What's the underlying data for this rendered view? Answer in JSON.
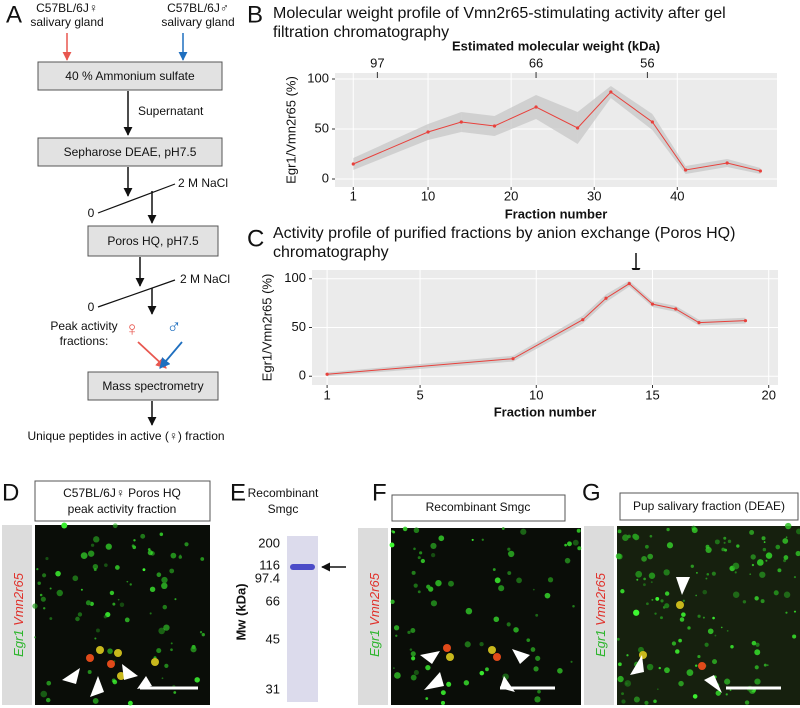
{
  "panel_labels": [
    "A",
    "B",
    "C",
    "D",
    "E",
    "F",
    "G"
  ],
  "flowchart": {
    "female_source": [
      "C57BL/6J♀",
      "salivary gland"
    ],
    "male_source": [
      "C57BL/6J♂",
      "salivary gland"
    ],
    "boxes": [
      "40 % Ammonium sulfate",
      "Sepharose DEAE, pH7.5",
      "Poros HQ, pH7.5",
      "Mass spectrometry"
    ],
    "supernatant": "Supernatant",
    "gradients": [
      {
        "high": "2 M NaCl",
        "low": "0"
      },
      {
        "high": "2 M NaCl",
        "low": "0"
      }
    ],
    "peak": [
      "Peak activity",
      "fractions:"
    ],
    "female": "♀",
    "male": "♂",
    "result": "Unique peptides in active (♀) fraction"
  },
  "chart_data": [
    {
      "type": "line",
      "title": "Molecular weight profile of Vmn2r65-stimulating activity after gel filtration chromatography",
      "xlabel": "Fraction number",
      "ylabel": "Egr1/Vmn2r65 (%)",
      "x2label": "Estimated molecular weight (kDa)",
      "x": [
        1,
        10,
        14,
        18,
        23,
        28,
        32,
        37,
        41,
        46,
        50
      ],
      "values": [
        15,
        47,
        57,
        53,
        72,
        51,
        87,
        57,
        9,
        16,
        8
      ],
      "errors": [
        6,
        8,
        10,
        10,
        12,
        16,
        6,
        8,
        4,
        4,
        3
      ],
      "xlim": [
        -1.2,
        52
      ],
      "xticks": [
        1,
        10,
        20,
        30,
        40
      ],
      "x2ticks": [
        97,
        66,
        56
      ],
      "x2tick_positions": [
        3.9,
        23,
        36.4
      ],
      "ylim": [
        -8,
        106
      ],
      "yticks": [
        0,
        50,
        100
      ],
      "grid": true,
      "color": "#e8413c",
      "band_color": "#c4c4c4",
      "panel_color": "#ebebeb"
    },
    {
      "type": "line",
      "title": "Activity profile of purified fractions by anion exchange (Poros HQ) chromatography",
      "xlabel": "Fraction number",
      "ylabel": "Egr1/Vmn2r65 (%)",
      "x": [
        1,
        9,
        12,
        13,
        14,
        15,
        16,
        17,
        19
      ],
      "values": [
        2,
        18,
        58,
        80,
        95,
        74,
        69,
        55,
        57
      ],
      "errors": [
        2,
        3,
        4,
        4,
        3,
        3,
        3,
        3,
        3
      ],
      "xlim": [
        0.35,
        20.4
      ],
      "xticks": [
        1,
        5,
        10,
        15,
        20
      ],
      "ylim": [
        -9,
        109
      ],
      "yticks": [
        0,
        50,
        100
      ],
      "grid": true,
      "color": "#e8413c",
      "band_color": "#c4c4c4",
      "panel_color": "#ebebeb"
    }
  ],
  "panel_d": {
    "caption": [
      "C57BL/6J♀ Poros HQ",
      "peak activity fraction"
    ],
    "stain": [
      "Egr1",
      "Vmn2r65"
    ]
  },
  "panel_e": {
    "title": [
      "Recombinant",
      "Smgc"
    ],
    "axis_label": "Mw (kDa)",
    "markers": [
      "200",
      "116",
      "97.4",
      "66",
      "45",
      "31"
    ]
  },
  "panel_f": {
    "caption": "Recombinant Smgc",
    "stain": [
      "Egr1",
      "Vmn2r65"
    ]
  },
  "panel_g": {
    "caption": "Pup salivary fraction (DEAE)",
    "stain": [
      "Egr1",
      "Vmn2r65"
    ]
  }
}
